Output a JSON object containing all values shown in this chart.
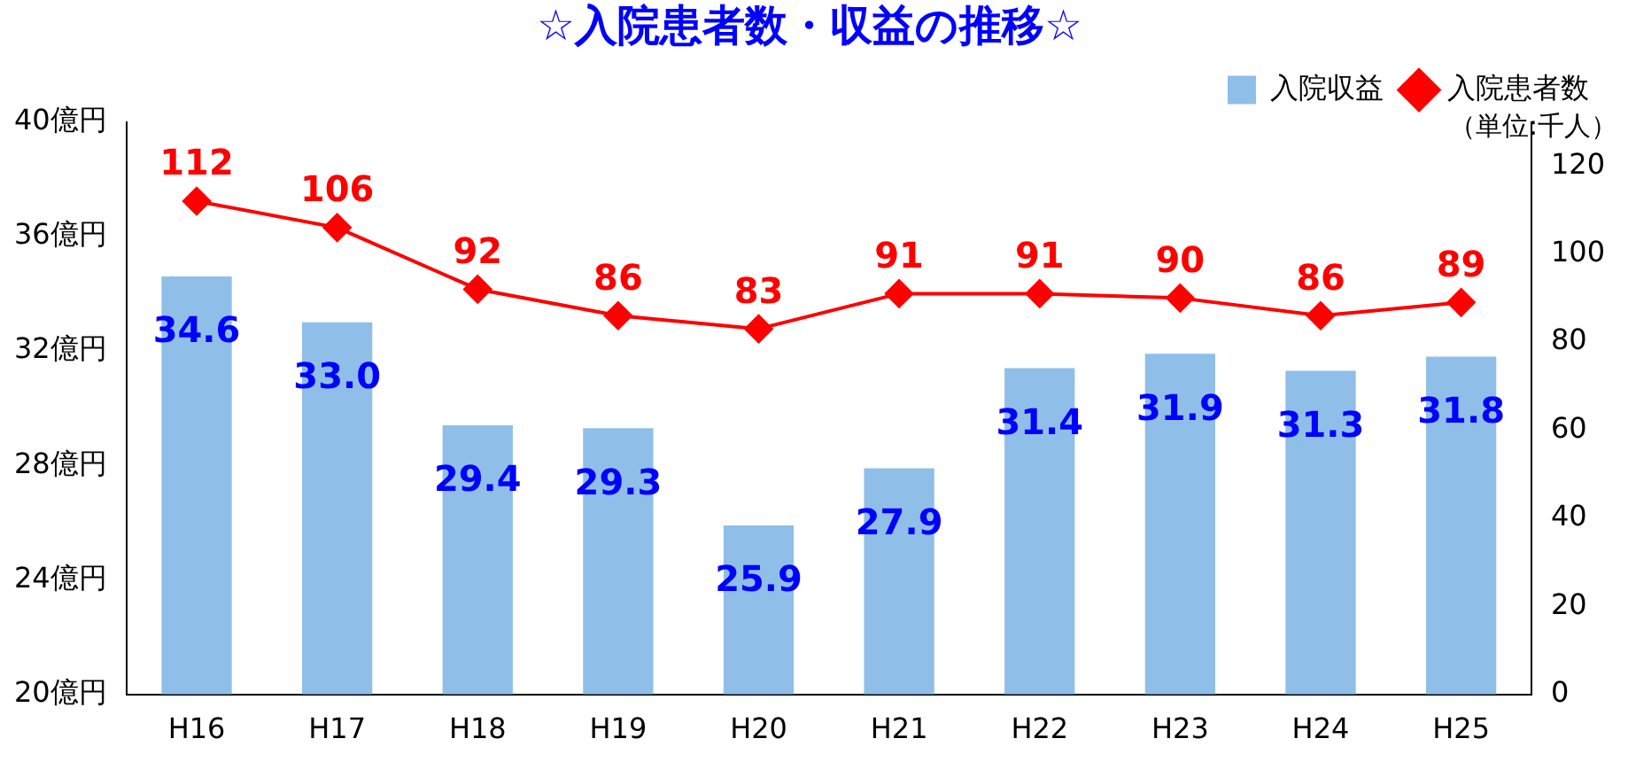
{
  "chart_data": {
    "type": "bar",
    "title": "☆入院患者数・収益の推移☆",
    "categories": [
      "H16",
      "H17",
      "H18",
      "H19",
      "H20",
      "H21",
      "H22",
      "H23",
      "H24",
      "H25"
    ],
    "series": [
      {
        "name": "入院収益",
        "color": "#8fbfe8",
        "values": [
          34.6,
          33.0,
          29.4,
          29.3,
          25.9,
          27.9,
          31.4,
          31.9,
          31.3,
          31.8
        ],
        "value_labels": [
          "34.6",
          "33.0",
          "29.4",
          "29.3",
          "25.9",
          "27.9",
          "31.4",
          "31.9",
          "31.3",
          "31.8"
        ]
      },
      {
        "name": "入院患者数",
        "type": "line",
        "axis": "y2",
        "color": "#ff0000",
        "values": [
          112,
          106,
          92,
          86,
          83,
          91,
          91,
          90,
          86,
          89
        ],
        "value_labels": [
          "112",
          "106",
          "92",
          "86",
          "83",
          "91",
          "91",
          "90",
          "86",
          "89"
        ]
      }
    ],
    "ylim": [
      20,
      40
    ],
    "yticks": [
      {
        "value": 20,
        "label": "20億円"
      },
      {
        "value": 24,
        "label": "24億円"
      },
      {
        "value": 28,
        "label": "28億円"
      },
      {
        "value": 32,
        "label": "32億円"
      },
      {
        "value": 36,
        "label": "36億円"
      },
      {
        "value": 40,
        "label": "40億円"
      }
    ],
    "y2lim": [
      0,
      130
    ],
    "y2ticks": [
      0,
      20,
      40,
      60,
      80,
      100,
      120
    ],
    "annotations": [
      "（単位:千人）"
    ],
    "legend": "top right",
    "grid": false,
    "marker": "diamond",
    "line_style": "solid"
  }
}
